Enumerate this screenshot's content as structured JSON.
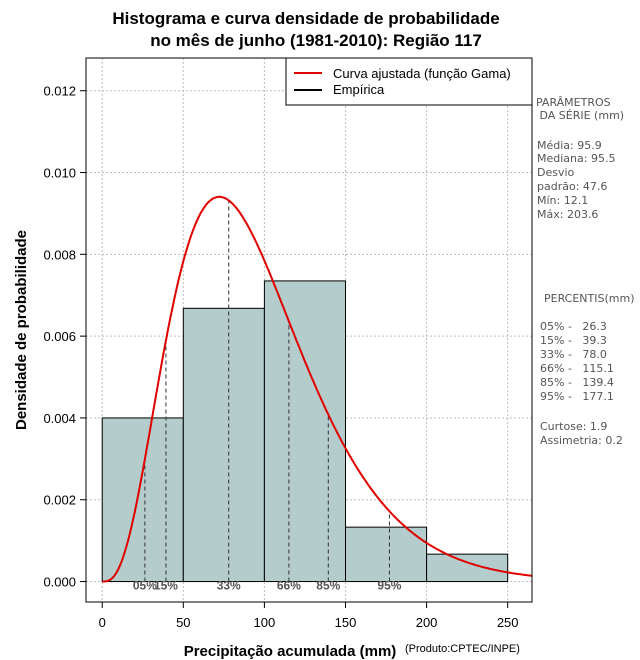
{
  "chart_data": {
    "type": "histogram",
    "title": [
      "Histograma e curva densidade de probabilidade",
      "no mês de junho (1981-2010): Região 117"
    ],
    "xlabel": "Precipitação acumulada (mm)",
    "ylabel": "Densidade de probabilidade",
    "credit": "(Produto:CPTEC/INPE)",
    "xlim": [
      -10,
      265
    ],
    "ylim": [
      -0.0005,
      0.0128
    ],
    "x_ticks": [
      0,
      50,
      100,
      150,
      200,
      250
    ],
    "y_ticks": [
      0.0,
      0.002,
      0.004,
      0.006,
      0.008,
      0.01,
      0.012
    ],
    "y_tick_labels": [
      "0.000",
      "0.002",
      "0.004",
      "0.006",
      "0.008",
      "0.010",
      "0.012"
    ],
    "grid": true,
    "bins": [
      {
        "from": 0,
        "to": 50,
        "density": 0.004
      },
      {
        "from": 50,
        "to": 100,
        "density": 0.00668
      },
      {
        "from": 100,
        "to": 150,
        "density": 0.00735
      },
      {
        "from": 150,
        "to": 200,
        "density": 0.00133
      },
      {
        "from": 200,
        "to": 250,
        "density": 0.00067
      }
    ],
    "bar_color": "#b4cccc",
    "gamma_fit": {
      "shape": 4.06,
      "rate": 0.04238,
      "color": "#e00000"
    },
    "legend": {
      "position": "top-right",
      "entries": [
        {
          "label": "Curva ajustada (função Gama)",
          "color": "#e00000"
        },
        {
          "label": "Empírica",
          "color": "#000000"
        }
      ]
    },
    "percentile_lines": [
      {
        "label": "05%",
        "value": 26.3
      },
      {
        "label": "15%",
        "value": 39.3
      },
      {
        "label": "33%",
        "value": 78.0
      },
      {
        "label": "66%",
        "value": 115.1
      },
      {
        "label": "85%",
        "value": 139.4
      },
      {
        "label": "95%",
        "value": 177.1
      }
    ]
  },
  "side_panel": {
    "params_title": [
      "PARÂMETROS",
      " DA SÉRIE (mm)"
    ],
    "params": [
      "Média:  95.9",
      "Mediana:  95.5",
      "Desvio",
      "padrão:  47.6",
      "Mín:  12.1",
      "Máx:  203.6"
    ],
    "percentis_title": "PERCENTIS(mm)",
    "percentis": [
      "05% -   26.3",
      "15% -   39.3",
      "33% -   78.0",
      "66% -   115.1",
      "85% -   139.4",
      "95% -   177.1"
    ],
    "stats": [
      "Curtose:  1.9",
      "Assimetria:  0.2"
    ]
  }
}
